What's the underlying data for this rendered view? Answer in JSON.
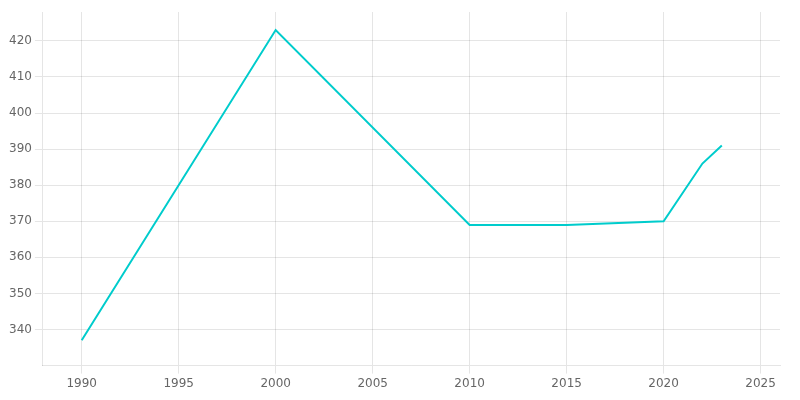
{
  "chart_data": {
    "type": "line",
    "x": [
      1990,
      2000,
      2010,
      2015,
      2020,
      2022,
      2023
    ],
    "values": [
      337,
      423,
      369,
      369,
      370,
      386,
      391
    ],
    "color": "#00CCCC",
    "xlim": [
      1988,
      2026
    ],
    "ylim": [
      330,
      428
    ],
    "xticks": [
      1990,
      1995,
      2000,
      2005,
      2010,
      2015,
      2020,
      2025
    ],
    "yticks": [
      340,
      350,
      360,
      370,
      380,
      390,
      400,
      410,
      420
    ],
    "grid": true
  }
}
